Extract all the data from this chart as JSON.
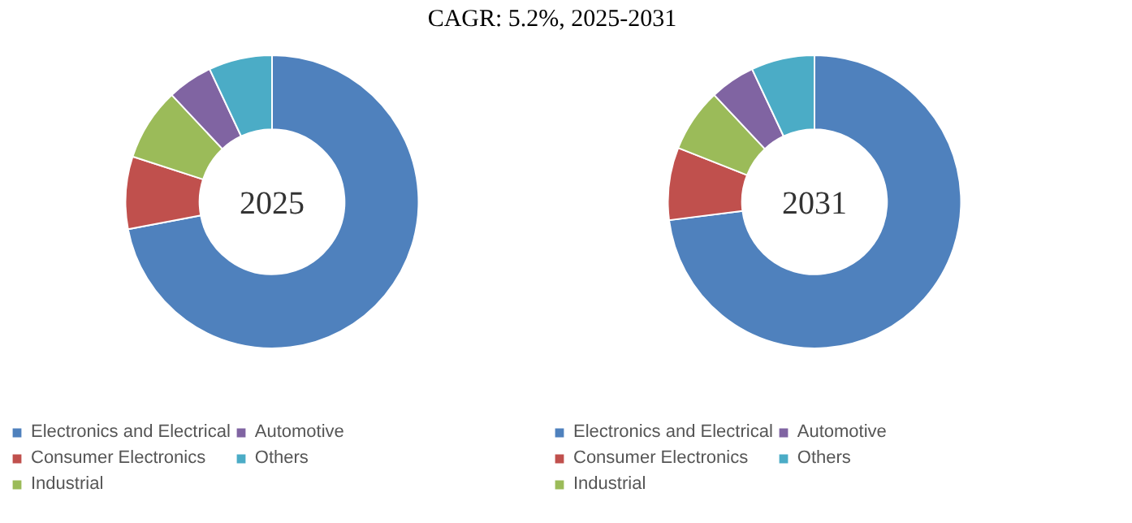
{
  "chart_data": [
    {
      "type": "donut",
      "title": "CAGR:   5.2%, 2025-2031",
      "annotations": [
        "2025"
      ],
      "categories": [
        "Electronics and Electrical",
        "Consumer Electronics",
        "Industrial",
        "Automotive",
        "Others"
      ],
      "values": [
        72,
        8,
        8,
        5,
        7
      ],
      "colors": [
        "#4f81bd",
        "#c0504d",
        "#9bbb59",
        "#8064a2",
        "#4bacc6"
      ],
      "legend": "bottom"
    },
    {
      "type": "donut",
      "annotations": [
        "2031"
      ],
      "categories": [
        "Electronics and Electrical",
        "Consumer Electronics",
        "Industrial",
        "Automotive",
        "Others"
      ],
      "values": [
        73,
        8,
        7,
        5,
        7
      ],
      "colors": [
        "#4f81bd",
        "#c0504d",
        "#9bbb59",
        "#8064a2",
        "#4bacc6"
      ],
      "legend": "bottom"
    }
  ]
}
